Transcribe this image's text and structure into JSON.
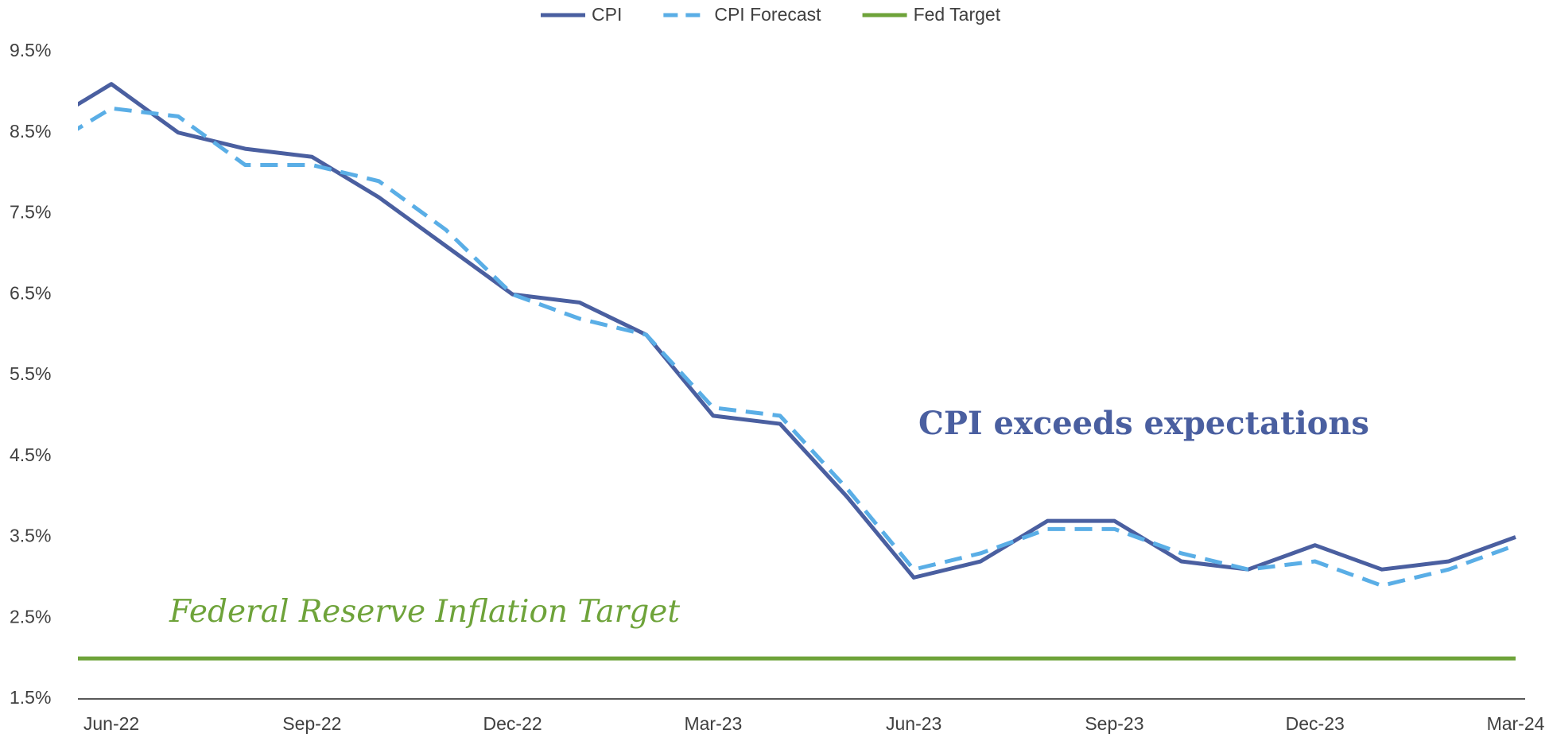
{
  "chart_data": {
    "type": "line",
    "categories": [
      null,
      "Jun-22",
      null,
      null,
      "Sep-22",
      null,
      null,
      "Dec-22",
      null,
      null,
      "Mar-23",
      null,
      null,
      "Jun-23",
      null,
      null,
      "Sep-23",
      null,
      null,
      "Dec-23",
      null,
      null,
      "Mar-24"
    ],
    "series": [
      {
        "name": "CPI",
        "color": "#4a5fa0",
        "dash": false,
        "values": [
          8.6,
          9.1,
          8.5,
          8.3,
          8.2,
          7.7,
          7.1,
          6.5,
          6.4,
          6.0,
          5.0,
          4.9,
          4.0,
          3.0,
          3.2,
          3.7,
          3.7,
          3.2,
          3.1,
          3.4,
          3.1,
          3.2,
          3.5
        ]
      },
      {
        "name": "CPI Forecast",
        "color": "#5aaee6",
        "dash": true,
        "values": [
          8.3,
          8.8,
          8.7,
          8.1,
          8.1,
          7.9,
          7.3,
          6.5,
          6.2,
          6.0,
          5.1,
          5.0,
          4.1,
          3.1,
          3.3,
          3.6,
          3.6,
          3.3,
          3.1,
          3.2,
          2.9,
          3.1,
          3.4
        ]
      },
      {
        "name": "Fed Target",
        "color": "#6ea33a",
        "dash": false,
        "values": [
          2,
          2,
          2,
          2,
          2,
          2,
          2,
          2,
          2,
          2,
          2,
          2,
          2,
          2,
          2,
          2,
          2,
          2,
          2,
          2,
          2,
          2,
          2
        ]
      }
    ],
    "ylim": [
      1.5,
      9.5
    ],
    "yticks": [
      {
        "value": 1.5,
        "label": "1.5%"
      },
      {
        "value": 2.5,
        "label": "2.5%"
      },
      {
        "value": 3.5,
        "label": "3.5%"
      },
      {
        "value": 4.5,
        "label": "4.5%"
      },
      {
        "value": 5.5,
        "label": "5.5%"
      },
      {
        "value": 6.5,
        "label": "6.5%"
      },
      {
        "value": 7.5,
        "label": "7.5%"
      },
      {
        "value": 8.5,
        "label": "8.5%"
      },
      {
        "value": 9.5,
        "label": "9.5%"
      }
    ],
    "legend": "top",
    "annotations": [
      "CPI exceeds expectations",
      "Federal Reserve Inflation Target"
    ]
  }
}
